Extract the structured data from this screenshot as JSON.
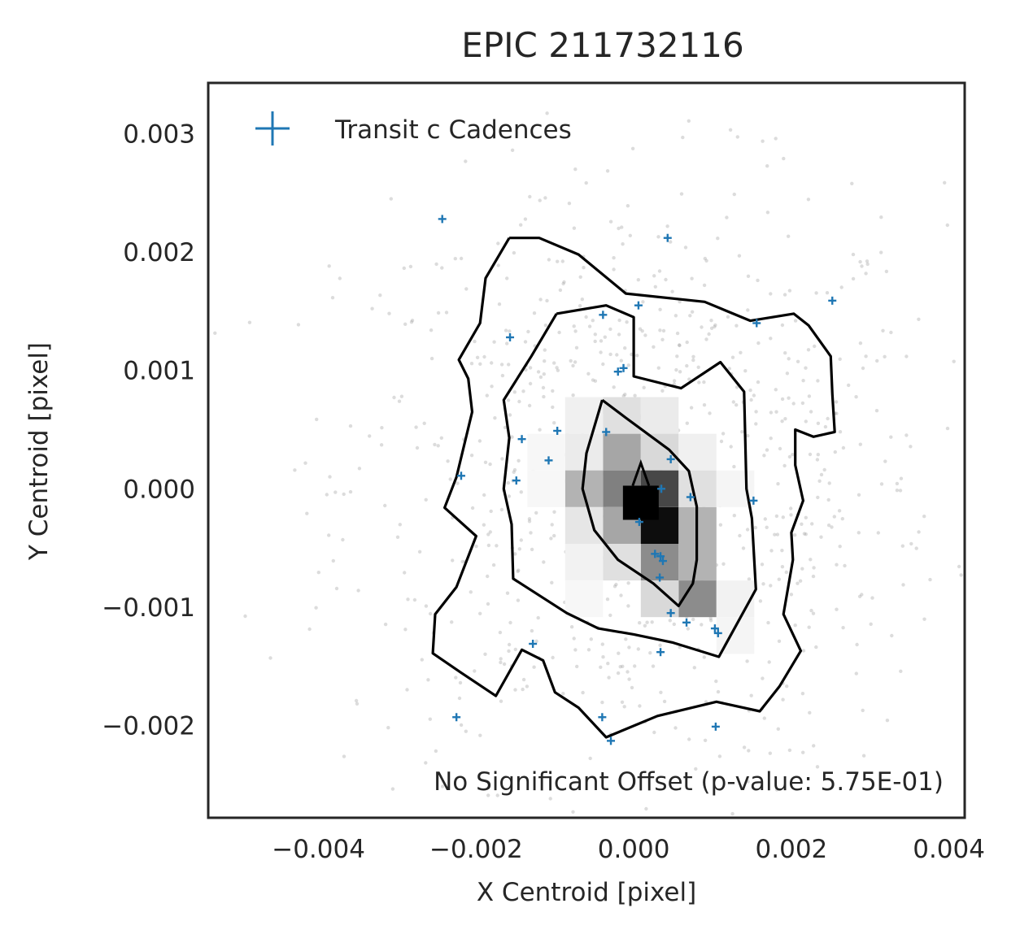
{
  "chart_data": {
    "type": "scatter",
    "title": "EPIC 211732116",
    "xlabel": "X Centroid [pixel]",
    "ylabel": "Y Centroid [pixel]",
    "xlim": [
      -0.0054,
      0.0042
    ],
    "ylim": [
      -0.00278,
      0.00343
    ],
    "xticks": [
      -0.004,
      -0.002,
      0.0,
      0.002,
      0.004
    ],
    "xtick_labels": [
      "−0.004",
      "−0.002",
      "0.000",
      "0.002",
      "0.004"
    ],
    "yticks": [
      -0.002,
      -0.001,
      0.0,
      0.001,
      0.002,
      0.003
    ],
    "ytick_labels": [
      "−0.002",
      "−0.001",
      "0.000",
      "0.001",
      "0.002",
      "0.003"
    ],
    "grid": false,
    "legend_position": "top-left",
    "annotation": "No Significant Offset (p-value: 5.75E-01)",
    "series": [
      {
        "name": "Transit c Cadences",
        "marker": "plus",
        "color": "#1f77b4",
        "points": [
          [
            -0.00243,
            0.00228
          ],
          [
            0.00043,
            0.00212
          ],
          [
            0.00252,
            0.00159
          ],
          [
            6e-05,
            0.00155
          ],
          [
            -0.00039,
            0.00147
          ],
          [
            0.00156,
            0.0014
          ],
          [
            -0.00157,
            0.00128
          ],
          [
            -0.0002,
            0.00099
          ],
          [
            -0.00013,
            0.00102
          ],
          [
            -0.00097,
            0.00049
          ],
          [
            -0.00035,
            0.00048
          ],
          [
            -0.00142,
            0.00042
          ],
          [
            -0.00219,
            0.00011
          ],
          [
            -0.00149,
            7e-05
          ],
          [
            -0.00108,
            0.00024
          ],
          [
            0.00047,
            0.00025
          ],
          [
            0.00035,
            0.0
          ],
          [
            0.00072,
            -7e-05
          ],
          [
            0.00152,
            -0.0001
          ],
          [
            7e-05,
            -0.00028
          ],
          [
            0.00027,
            -0.00055
          ],
          [
            0.00034,
            -0.00057
          ],
          [
            0.00037,
            -0.00061
          ],
          [
            0.00033,
            -0.00075
          ],
          [
            0.00047,
            -0.00105
          ],
          [
            0.00067,
            -0.00113
          ],
          [
            0.00103,
            -0.00118
          ],
          [
            0.00107,
            -0.00122
          ],
          [
            -0.00128,
            -0.00131
          ],
          [
            0.00034,
            -0.00138
          ],
          [
            -0.00225,
            -0.00193
          ],
          [
            -0.0004,
            -0.00193
          ],
          [
            -0.00029,
            -0.00213
          ],
          [
            0.00104,
            -0.00201
          ]
        ]
      }
    ],
    "density_background": {
      "description": "grey scatter of all cadences with 2D histogram shading",
      "bin_size": [
        0.00048,
        0.00031
      ],
      "bins": [
        {
          "x": -0.00015,
          "y": 0.00031,
          "level": 0.35
        },
        {
          "x": 0.00033,
          "y": 0.00031,
          "level": 0.15
        },
        {
          "x": -0.00063,
          "y": 0.00031,
          "level": 0.08
        },
        {
          "x": -0.00015,
          "y": 0.0,
          "level": 0.5
        },
        {
          "x": 0.00033,
          "y": 0.0,
          "level": 0.72
        },
        {
          "x": -0.00063,
          "y": 0.0,
          "level": 0.3
        },
        {
          "x": 0.00081,
          "y": 0.0,
          "level": 0.12
        },
        {
          "x": -0.00015,
          "y": -0.00031,
          "level": 0.35
        },
        {
          "x": 0.00033,
          "y": -0.00031,
          "level": 0.95
        },
        {
          "x": 0.00081,
          "y": -0.00031,
          "level": 0.3
        },
        {
          "x": -0.00063,
          "y": -0.00031,
          "level": 0.1
        },
        {
          "x": 0.00033,
          "y": -0.00062,
          "level": 0.45
        },
        {
          "x": 0.00081,
          "y": -0.00062,
          "level": 0.3
        },
        {
          "x": -0.00015,
          "y": -0.00062,
          "level": 0.12
        },
        {
          "x": 0.00081,
          "y": -0.00093,
          "level": 0.45
        },
        {
          "x": 0.00033,
          "y": -0.00093,
          "level": 0.15
        },
        {
          "x": -0.00015,
          "y": 0.00062,
          "level": 0.12
        },
        {
          "x": 0.00033,
          "y": 0.00062,
          "level": 0.08
        },
        {
          "x": -0.00063,
          "y": 0.00062,
          "level": 0.06
        },
        {
          "x": 0.00081,
          "y": 0.00031,
          "level": 0.06
        },
        {
          "x": 0.00129,
          "y": 0.0,
          "level": 0.04
        },
        {
          "x": 0.00129,
          "y": -0.00093,
          "level": 0.05
        },
        {
          "x": 0.00129,
          "y": -0.00124,
          "level": 0.04
        },
        {
          "x": -0.00063,
          "y": -0.00062,
          "level": 0.05
        },
        {
          "x": -0.00063,
          "y": -0.00093,
          "level": 0.03
        },
        {
          "x": -0.00111,
          "y": 0.00031,
          "level": 0.03
        },
        {
          "x": -0.00111,
          "y": 0.0,
          "level": 0.03
        }
      ],
      "contours": [
        [
          [
            -0.0004,
            0.00075
          ],
          [
            -0.0001,
            0.0006
          ],
          [
            0.00045,
            0.00033
          ],
          [
            0.0007,
            0.00015
          ],
          [
            0.0008,
            -0.00015
          ],
          [
            0.0008,
            -0.0006
          ],
          [
            0.00075,
            -0.0008
          ],
          [
            0.00057,
            -0.00099
          ],
          [
            0.00025,
            -0.0008
          ],
          [
            -0.0002,
            -0.0006
          ],
          [
            -0.0005,
            -0.00035
          ],
          [
            -0.00065,
            0.0
          ],
          [
            -0.0006,
            0.0003
          ],
          [
            -0.0004,
            0.00075
          ]
        ],
        [
          [
            -0.00098,
            0.00148
          ],
          [
            -0.00035,
            0.00155
          ],
          [
            0.0,
            0.00145
          ],
          [
            0.0,
            0.00095
          ],
          [
            0.0006,
            0.00085
          ],
          [
            0.0011,
            0.00107
          ],
          [
            0.0014,
            0.00082
          ],
          [
            0.00143,
            0.0
          ],
          [
            0.0015,
            -0.00025
          ],
          [
            0.00155,
            -0.00085
          ],
          [
            0.00108,
            -0.00142
          ],
          [
            0.0005,
            -0.0013
          ],
          [
            0.0,
            -0.00123
          ],
          [
            -0.00045,
            -0.00118
          ],
          [
            -0.00085,
            -0.00105
          ],
          [
            -0.00153,
            -0.00076
          ],
          [
            -0.00155,
            -0.0003
          ],
          [
            -0.00165,
            0.0
          ],
          [
            -0.00158,
            0.00043
          ],
          [
            -0.00165,
            0.00075
          ],
          [
            -0.0013,
            0.00112
          ],
          [
            -0.00098,
            0.00148
          ]
        ],
        [
          [
            -0.00158,
            0.00212
          ],
          [
            -0.0012,
            0.00212
          ],
          [
            -0.0007,
            0.00198
          ],
          [
            -0.0001,
            0.00165
          ],
          [
            0.0009,
            0.00158
          ],
          [
            0.00148,
            0.00142
          ],
          [
            0.00203,
            0.00148
          ],
          [
            0.00222,
            0.00138
          ],
          [
            0.0025,
            0.00112
          ],
          [
            0.00252,
            0.0008
          ],
          [
            0.00255,
            0.00048
          ],
          [
            0.00228,
            0.00044
          ],
          [
            0.00205,
            0.0005
          ],
          [
            0.00205,
            0.0002
          ],
          [
            0.00215,
            -0.0001
          ],
          [
            0.002,
            -0.00037
          ],
          [
            0.00202,
            -0.0006
          ],
          [
            0.0019,
            -0.00106
          ],
          [
            0.00212,
            -0.00137
          ],
          [
            0.00185,
            -0.00167
          ],
          [
            0.0016,
            -0.00188
          ],
          [
            0.00105,
            -0.0018
          ],
          [
            0.0003,
            -0.00192
          ],
          [
            -0.00035,
            -0.0021
          ],
          [
            -0.0007,
            -0.00185
          ],
          [
            -0.001,
            -0.00172
          ],
          [
            -0.00115,
            -0.00145
          ],
          [
            -0.00142,
            -0.00136
          ],
          [
            -0.00175,
            -0.00175
          ],
          [
            -0.0022,
            -0.00155
          ],
          [
            -0.00255,
            -0.00139
          ],
          [
            -0.00252,
            -0.00106
          ],
          [
            -0.00225,
            -0.00083
          ],
          [
            -0.002,
            -0.0004
          ],
          [
            -0.0024,
            -0.00016
          ],
          [
            -0.00225,
            0.0001
          ],
          [
            -0.00205,
            0.00065
          ],
          [
            -0.0021,
            0.00093
          ],
          [
            -0.00222,
            0.00109
          ],
          [
            -0.00195,
            0.0014
          ],
          [
            -0.00188,
            0.00178
          ],
          [
            -0.00158,
            0.00212
          ]
        ]
      ],
      "peak_marker": {
        "x": 9e-05,
        "y": 4e-05
      }
    }
  }
}
